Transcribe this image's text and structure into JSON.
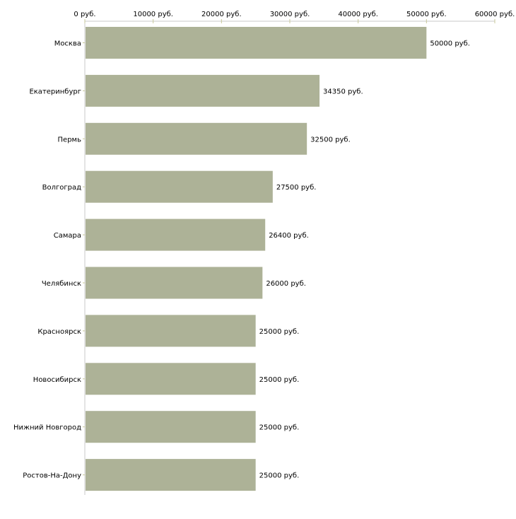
{
  "chart_data": {
    "type": "bar",
    "orientation": "horizontal",
    "title": "",
    "xlabel": "",
    "ylabel": "",
    "xlim": [
      0,
      60000
    ],
    "unit_suffix": " руб.",
    "x_ticks": [
      "0 руб.",
      "10000 руб.",
      "20000 руб.",
      "30000 руб.",
      "40000 руб.",
      "50000 руб.",
      "60000 руб."
    ],
    "x_tick_values": [
      0,
      10000,
      20000,
      30000,
      40000,
      50000,
      60000
    ],
    "categories": [
      "Москва",
      "Екатеринбург",
      "Пермь",
      "Волгоград",
      "Самара",
      "Челябинск",
      "Красноярск",
      "Новосибирск",
      "Нижний Новгород",
      "Ростов-На-Дону"
    ],
    "values": [
      50000,
      34350,
      32500,
      27500,
      26400,
      26000,
      25000,
      25000,
      25000,
      25000
    ],
    "data_labels": [
      "50000 руб.",
      "34350 руб.",
      "32500 руб.",
      "27500 руб.",
      "26400 руб.",
      "26000 руб.",
      "25000 руб.",
      "25000 руб.",
      "25000 руб.",
      "25000 руб."
    ],
    "bar_color": "#adb297",
    "axis_color": "#c8c8c8",
    "tick_color": "#c8c89a",
    "grid": false,
    "legend": "none"
  }
}
